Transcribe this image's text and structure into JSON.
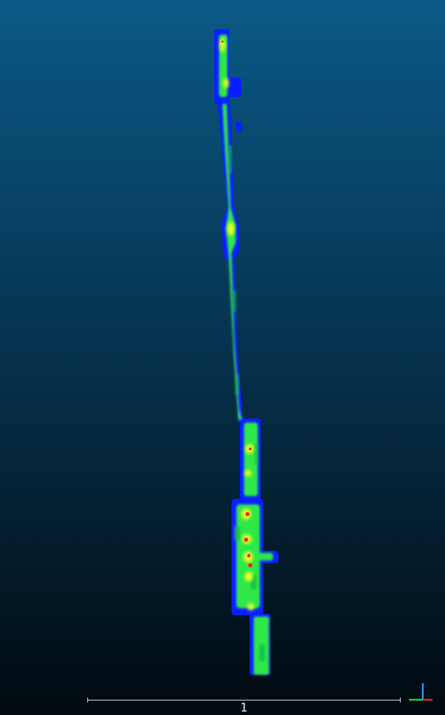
{
  "viewer": {
    "background_top": "#0a5a86",
    "background_bottom": "#010a10",
    "colormap": [
      "#0000ff",
      "#00ff40",
      "#ffff00",
      "#ff0000"
    ]
  },
  "scale_bar": {
    "label": "1"
  },
  "axis_gizmo": {
    "x_color": "#ff2020",
    "y_color": "#20e020",
    "z_color": "#20a0ff",
    "icon": "axis-triad-icon"
  }
}
